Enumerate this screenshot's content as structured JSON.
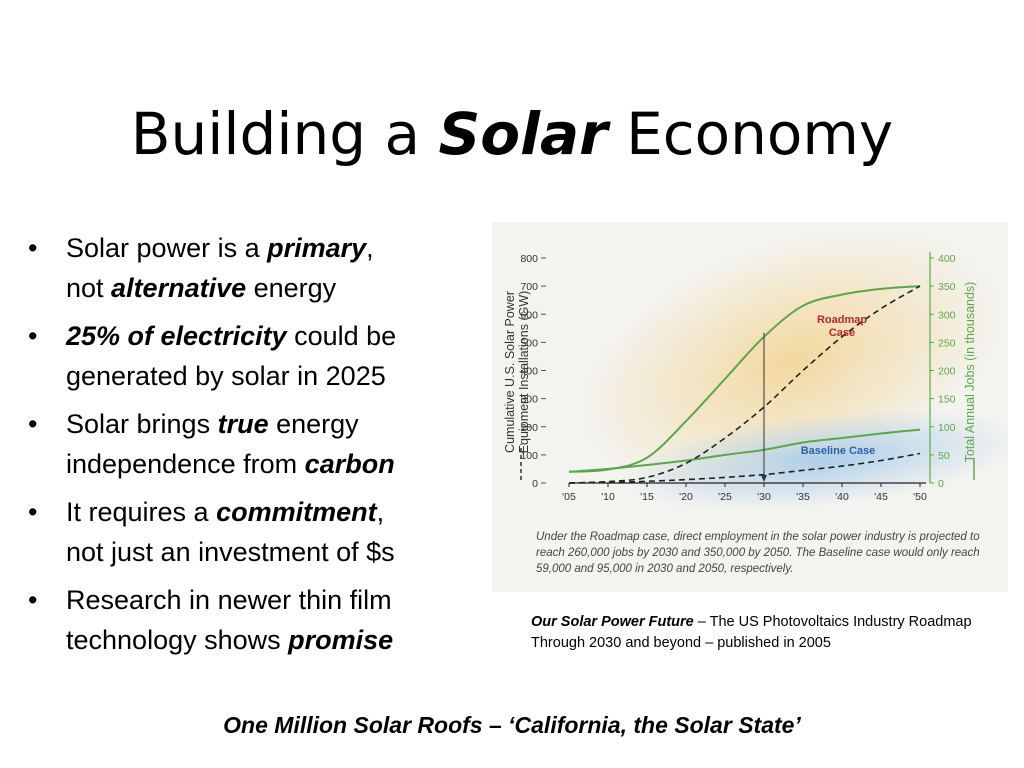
{
  "slide": {
    "title_prefix": "Building a ",
    "title_emphasis": "Solar",
    "title_suffix": " Economy"
  },
  "bullets": [
    {
      "l1a": "Solar power is a ",
      "l1b": "primary",
      "l1c": ",",
      "l2a": "not ",
      "l2b": "alternative",
      "l2c": " energy"
    },
    {
      "l1a": "",
      "l1b": "25% of electricity",
      "l1c": " could be",
      "l2a": "generated by solar in 2025",
      "l2b": "",
      "l2c": ""
    },
    {
      "l1a": "Solar brings ",
      "l1b": "true",
      "l1c": " energy",
      "l2a": "independence from ",
      "l2b": "carbon",
      "l2c": ""
    },
    {
      "l1a": "It requires a ",
      "l1b": "commitment",
      "l1c": ",",
      "l2a": "not just an investment of $s",
      "l2b": "",
      "l2c": ""
    },
    {
      "l1a": "Research in newer thin film",
      "l1b": "",
      "l1c": "",
      "l2a": "technology shows ",
      "l2b": "promise",
      "l2c": ""
    }
  ],
  "chart_data": {
    "type": "line",
    "title": "",
    "x": [
      "'05",
      "'10",
      "'15",
      "'20",
      "'25",
      "'30",
      "'35",
      "'40",
      "'45",
      "'50"
    ],
    "x_years": [
      2005,
      2010,
      2015,
      2020,
      2025,
      2030,
      2035,
      2040,
      2045,
      2050
    ],
    "ylabel_left": "Cumulative U.S. Solar Power Equipment Installations (GW)",
    "ylabel_right": "Total Annual Jobs (in thousands)",
    "ylim_left": [
      0,
      800
    ],
    "ylim_right": [
      0,
      400
    ],
    "yticks_left": [
      0,
      100,
      200,
      300,
      400,
      500,
      600,
      700,
      800
    ],
    "yticks_right": [
      0,
      50,
      100,
      150,
      200,
      250,
      300,
      350,
      400
    ],
    "series": [
      {
        "name": "Roadmap Case",
        "axis": "right",
        "style": "solid",
        "color": "#5aa84a",
        "values": [
          20,
          24,
          45,
          110,
          185,
          260,
          315,
          335,
          345,
          350
        ]
      },
      {
        "name": "Baseline Case",
        "axis": "right",
        "style": "solid",
        "color": "#5aa84a",
        "values": [
          20,
          25,
          32,
          40,
          50,
          59,
          72,
          80,
          88,
          95
        ]
      },
      {
        "axis": "left",
        "style": "dashed",
        "color": "#222222",
        "values": [
          0,
          5,
          20,
          70,
          160,
          270,
          400,
          520,
          620,
          700
        ]
      },
      {
        "axis": "left",
        "style": "dashed",
        "color": "#222222",
        "values": [
          0,
          2,
          6,
          12,
          20,
          30,
          45,
          60,
          80,
          105
        ]
      }
    ],
    "annotations": {
      "roadmap_label_1": "Roadmap",
      "roadmap_label_2": "Case",
      "baseline_label": "Baseline Case",
      "arrow_at": "'30"
    },
    "note": "Under the Roadmap case, direct employment in the solar power industry is projected to reach 260,000 jobs by 2030 and 350,000 by 2050. The Baseline case would only reach 59,000 and 95,000 in 2030 and 2050, respectively.",
    "colors": {
      "roadmap_label": "#b5282f",
      "baseline_label": "#2f5fa8",
      "glow_roadmap": "#f3d79a",
      "glow_baseline": "#a9cdea",
      "axis_right": "#5aa84a"
    }
  },
  "caption": {
    "title": "Our Solar Power Future",
    "rest": " – The US Photovoltaics Industry Roadmap Through 2030 and beyond – published in 2005"
  },
  "footer": "One Million Solar Roofs – ‘California, the Solar State’"
}
